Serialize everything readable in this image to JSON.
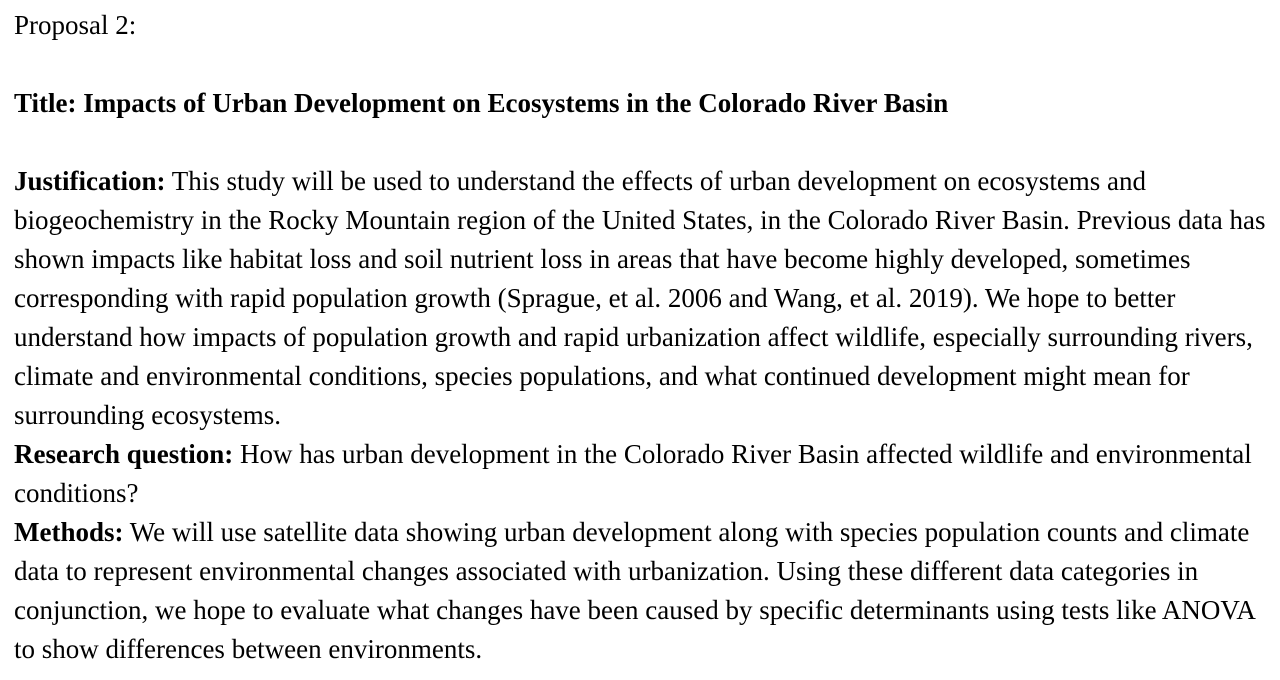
{
  "document": {
    "heading": "Proposal 2:",
    "title": "Title: Impacts of Urban Development on Ecosystems in the Colorado River Basin",
    "justification": {
      "label": "Justification:",
      "text": " This study will be used to understand the effects of urban development on ecosystems and biogeochemistry in the Rocky Mountain region of the United States, in the Colorado River Basin. Previous data has shown impacts like habitat loss and soil nutrient loss in areas that have become highly developed, sometimes corresponding with rapid population growth (Sprague, et al. 2006 and Wang, et al. 2019). We hope to better understand how impacts of population growth and rapid urbanization affect wildlife, especially surrounding rivers, climate and environmental conditions, species populations, and what continued development might mean for surrounding ecosystems."
    },
    "research_question": {
      "label": "Research question:",
      "text": " How has urban development in the Colorado River Basin affected wildlife and environmental conditions?"
    },
    "methods": {
      "label": "Methods:",
      "text": " We will use satellite data showing urban development along with species population counts and climate data to represent environmental changes associated with urbanization. Using these different data categories in conjunction, we hope to evaluate what changes have been caused by specific determinants using tests like ANOVA to show differences between environments."
    }
  }
}
